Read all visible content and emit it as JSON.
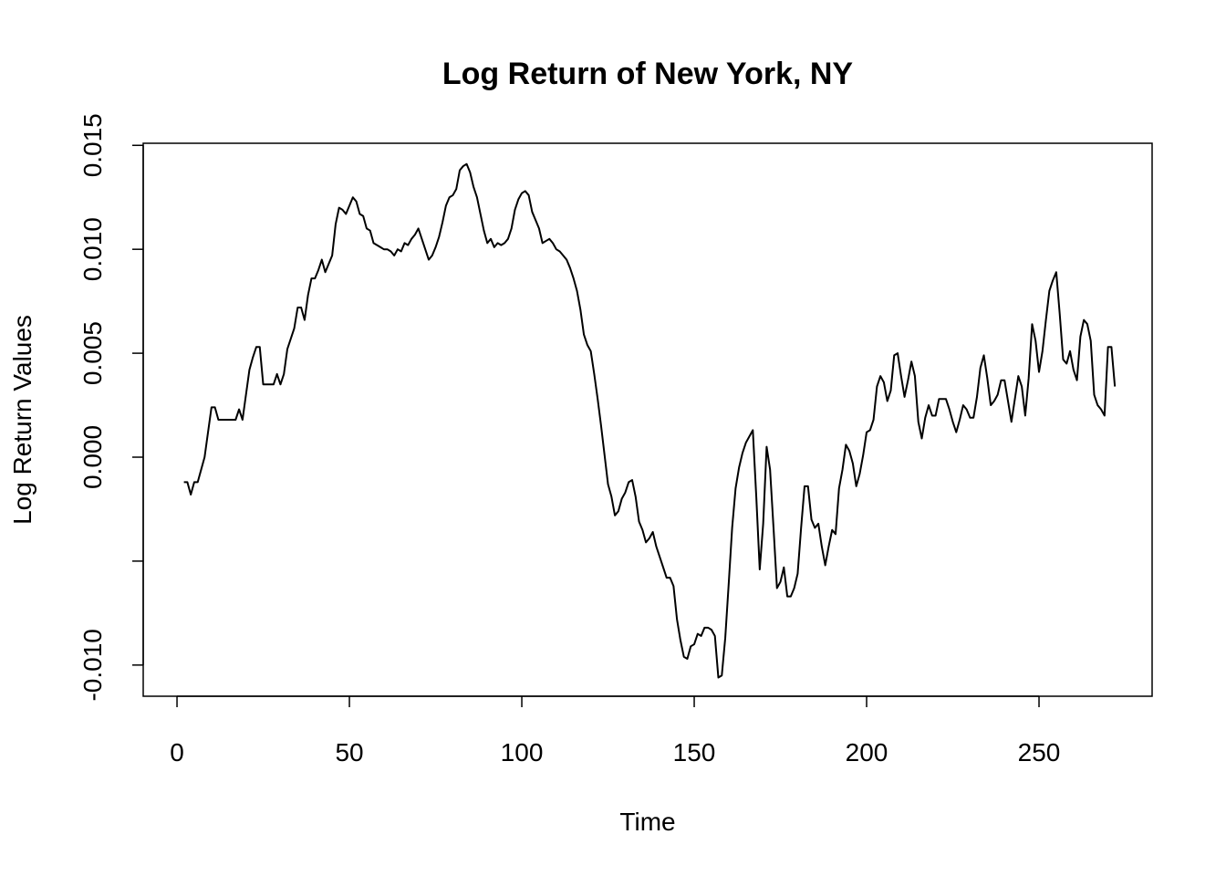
{
  "chart_data": {
    "type": "line",
    "title": "Log Return of New York, NY",
    "x_label": "Time",
    "y_label": "Log Return Values",
    "color": "#000000",
    "xlim": [
      -9.8,
      282.8
    ],
    "ylim": [
      -0.0115,
      0.0151
    ],
    "xticks": [
      0,
      50,
      100,
      150,
      200,
      250
    ],
    "yticks": [
      {
        "value": -0.01,
        "label": "-0.010"
      },
      {
        "value": -0.005,
        "label": null
      },
      {
        "value": 0,
        "label": "0.000"
      },
      {
        "value": 0.005,
        "label": "0.005"
      },
      {
        "value": 0.01,
        "label": "0.010"
      },
      {
        "value": 0.015,
        "label": "0.015"
      }
    ],
    "x": [
      2,
      3,
      4,
      5,
      6,
      7,
      8,
      9,
      10,
      11,
      12,
      13,
      14,
      15,
      16,
      17,
      18,
      19,
      20,
      21,
      22,
      23,
      24,
      25,
      26,
      27,
      28,
      29,
      30,
      31,
      32,
      33,
      34,
      35,
      36,
      37,
      38,
      39,
      40,
      41,
      42,
      43,
      44,
      45,
      46,
      47,
      48,
      49,
      50,
      51,
      52,
      53,
      54,
      55,
      56,
      57,
      58,
      59,
      60,
      61,
      62,
      63,
      64,
      65,
      66,
      67,
      68,
      69,
      70,
      71,
      72,
      73,
      74,
      75,
      76,
      77,
      78,
      79,
      80,
      81,
      82,
      83,
      84,
      85,
      86,
      87,
      88,
      89,
      90,
      91,
      92,
      93,
      94,
      95,
      96,
      97,
      98,
      99,
      100,
      101,
      102,
      103,
      104,
      105,
      106,
      107,
      108,
      109,
      110,
      111,
      112,
      113,
      114,
      115,
      116,
      117,
      118,
      119,
      120,
      121,
      122,
      123,
      124,
      125,
      126,
      127,
      128,
      129,
      130,
      131,
      132,
      133,
      134,
      135,
      136,
      137,
      138,
      139,
      140,
      141,
      142,
      143,
      144,
      145,
      146,
      147,
      148,
      149,
      150,
      151,
      152,
      153,
      154,
      155,
      156,
      157,
      158,
      159,
      160,
      161,
      162,
      163,
      164,
      165,
      166,
      167,
      168,
      169,
      170,
      171,
      172,
      173,
      174,
      175,
      176,
      177,
      178,
      179,
      180,
      181,
      182,
      183,
      184,
      185,
      186,
      187,
      188,
      189,
      190,
      191,
      192,
      193,
      194,
      195,
      196,
      197,
      198,
      199,
      200,
      201,
      202,
      203,
      204,
      205,
      206,
      207,
      208,
      209,
      210,
      211,
      212,
      213,
      214,
      215,
      216,
      217,
      218,
      219,
      220,
      221,
      222,
      223,
      224,
      225,
      226,
      227,
      228,
      229,
      230,
      231,
      232,
      233,
      234,
      235,
      236,
      237,
      238,
      239,
      240,
      241,
      242,
      243,
      244,
      245,
      246,
      247,
      248,
      249,
      250,
      251,
      252,
      253,
      254,
      255,
      256,
      257,
      258,
      259,
      260,
      261,
      262,
      263,
      264,
      265,
      266,
      267,
      268,
      269,
      270,
      271,
      272
    ],
    "values": [
      -0.0012,
      -0.0012,
      -0.0018,
      -0.0012,
      -0.0012,
      -0.0006,
      0.0,
      0.0012,
      0.0024,
      0.0024,
      0.0018,
      0.0018,
      0.0018,
      0.0018,
      0.0018,
      0.0018,
      0.0023,
      0.0018,
      0.003,
      0.0042,
      0.0048,
      0.0053,
      0.0053,
      0.0035,
      0.0035,
      0.0035,
      0.0035,
      0.004,
      0.0035,
      0.004,
      0.0052,
      0.0057,
      0.0062,
      0.0072,
      0.0072,
      0.0066,
      0.0078,
      0.0086,
      0.0086,
      0.009,
      0.0095,
      0.0089,
      0.0093,
      0.0097,
      0.0112,
      0.012,
      0.0119,
      0.0117,
      0.0121,
      0.0125,
      0.0123,
      0.0117,
      0.0116,
      0.011,
      0.0109,
      0.0103,
      0.0102,
      0.0101,
      0.01,
      0.01,
      0.0099,
      0.0097,
      0.01,
      0.0099,
      0.0103,
      0.0102,
      0.0105,
      0.0107,
      0.011,
      0.0105,
      0.01,
      0.0095,
      0.0097,
      0.0101,
      0.0106,
      0.0113,
      0.0121,
      0.0125,
      0.0126,
      0.0129,
      0.0138,
      0.014,
      0.0141,
      0.0137,
      0.013,
      0.0125,
      0.0117,
      0.0109,
      0.0103,
      0.0105,
      0.0101,
      0.0103,
      0.0102,
      0.0103,
      0.0105,
      0.011,
      0.0119,
      0.0124,
      0.0127,
      0.0128,
      0.0126,
      0.0118,
      0.0114,
      0.011,
      0.0103,
      0.0104,
      0.0105,
      0.0103,
      0.01,
      0.0099,
      0.0097,
      0.0095,
      0.0091,
      0.0086,
      0.008,
      0.0071,
      0.0059,
      0.0054,
      0.0051,
      0.004,
      0.0028,
      0.0015,
      0.0001,
      -0.0013,
      -0.0019,
      -0.0028,
      -0.0026,
      -0.002,
      -0.0017,
      -0.0012,
      -0.0011,
      -0.0019,
      -0.0031,
      -0.0035,
      -0.0041,
      -0.0039,
      -0.0036,
      -0.0043,
      -0.0048,
      -0.0053,
      -0.0058,
      -0.0058,
      -0.0062,
      -0.0078,
      -0.0088,
      -0.0096,
      -0.0097,
      -0.0091,
      -0.009,
      -0.0085,
      -0.0086,
      -0.0082,
      -0.0082,
      -0.0083,
      -0.0086,
      -0.0106,
      -0.0105,
      -0.0087,
      -0.0061,
      -0.0034,
      -0.0015,
      -0.0005,
      0.0002,
      0.0007,
      0.001,
      0.0013,
      -0.0019,
      -0.0054,
      -0.0032,
      0.0005,
      -0.0006,
      -0.0034,
      -0.0063,
      -0.006,
      -0.0053,
      -0.0067,
      -0.0067,
      -0.0063,
      -0.0056,
      -0.0034,
      -0.0014,
      -0.0014,
      -0.003,
      -0.0034,
      -0.0032,
      -0.0043,
      -0.0052,
      -0.0043,
      -0.0035,
      -0.0037,
      -0.0015,
      -0.0006,
      0.0006,
      0.0003,
      -0.0003,
      -0.0014,
      -0.0008,
      0.0001,
      0.0012,
      0.0013,
      0.0018,
      0.0034,
      0.0039,
      0.0036,
      0.0027,
      0.0032,
      0.0049,
      0.005,
      0.0039,
      0.0029,
      0.0037,
      0.0046,
      0.0039,
      0.0017,
      0.0009,
      0.0019,
      0.0025,
      0.002,
      0.002,
      0.0028,
      0.0028,
      0.0028,
      0.0023,
      0.0017,
      0.0012,
      0.0018,
      0.0025,
      0.0023,
      0.0019,
      0.0019,
      0.0029,
      0.0043,
      0.0049,
      0.0038,
      0.0025,
      0.0027,
      0.003,
      0.0037,
      0.0037,
      0.0027,
      0.0017,
      0.0028,
      0.0039,
      0.0034,
      0.002,
      0.0038,
      0.0064,
      0.0056,
      0.0041,
      0.0051,
      0.0066,
      0.008,
      0.0085,
      0.0089,
      0.0069,
      0.0047,
      0.0045,
      0.0051,
      0.0042,
      0.0037,
      0.0058,
      0.0066,
      0.0064,
      0.0056,
      0.003,
      0.0025,
      0.0023,
      0.002,
      0.0053,
      0.0053,
      0.0034
    ]
  }
}
